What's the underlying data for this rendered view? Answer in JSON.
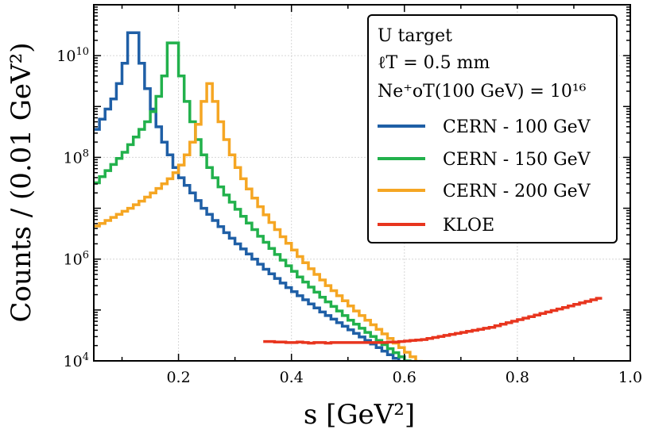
{
  "chart_data": {
    "type": "line",
    "title": "",
    "xlabel": "s [GeV²]",
    "ylabel": "Counts / (0.01 GeV²)",
    "xlim": [
      0.05,
      1.0
    ],
    "ylim_log10": [
      4,
      11
    ],
    "yscale": "log",
    "x_ticks": [
      0.2,
      0.4,
      0.6,
      0.8,
      1.0
    ],
    "x_tick_labels": [
      "0.2",
      "0.4",
      "0.6",
      "0.8",
      "1.0"
    ],
    "y_ticks_log10": [
      4,
      6,
      8,
      10
    ],
    "y_tick_labels": [
      {
        "base": "10",
        "exp": "4"
      },
      {
        "base": "10",
        "exp": "6"
      },
      {
        "base": "10",
        "exp": "8"
      },
      {
        "base": "10",
        "exp": "10"
      }
    ],
    "grid": true,
    "legend": {
      "placement": "top-right",
      "header": [
        "U target",
        "ℓT = 0.5 mm",
        "Ne⁺oT(100 GeV) = 10¹⁶"
      ],
      "entries": [
        "CERN - 100 GeV",
        "CERN - 150 GeV",
        "CERN - 200 GeV",
        "KLOE"
      ]
    },
    "series": [
      {
        "name": "CERN - 100 GeV",
        "color": "#1f5fa6",
        "style": "step",
        "bin_width": 0.01,
        "x_start": 0.05,
        "log10_counts": [
          8.55,
          8.75,
          8.95,
          9.15,
          9.45,
          9.85,
          10.45,
          10.45,
          9.85,
          9.35,
          8.95,
          8.6,
          8.3,
          8.05,
          7.8,
          7.6,
          7.45,
          7.3,
          7.15,
          7.0,
          6.88,
          6.76,
          6.64,
          6.52,
          6.41,
          6.3,
          6.2,
          6.1,
          6.0,
          5.9,
          5.8,
          5.71,
          5.62,
          5.53,
          5.44,
          5.36,
          5.28,
          5.2,
          5.12,
          5.04,
          4.96,
          4.89,
          4.82,
          4.75,
          4.68,
          4.61,
          4.54,
          4.47,
          4.4,
          4.33,
          4.26,
          4.19,
          4.12,
          4.05,
          3.98,
          3.9
        ]
      },
      {
        "name": "CERN - 150 GeV",
        "color": "#22b14c",
        "style": "step",
        "bin_width": 0.01,
        "x_start": 0.05,
        "log10_counts": [
          7.5,
          7.62,
          7.74,
          7.86,
          7.98,
          8.1,
          8.25,
          8.4,
          8.55,
          8.7,
          8.9,
          9.2,
          9.6,
          10.25,
          10.25,
          9.6,
          9.1,
          8.7,
          8.35,
          8.05,
          7.8,
          7.6,
          7.42,
          7.26,
          7.12,
          6.98,
          6.84,
          6.71,
          6.58,
          6.45,
          6.33,
          6.21,
          6.09,
          5.98,
          5.87,
          5.76,
          5.65,
          5.55,
          5.45,
          5.35,
          5.25,
          5.16,
          5.07,
          4.98,
          4.89,
          4.8,
          4.72,
          4.64,
          4.56,
          4.48,
          4.4,
          4.32,
          4.24,
          4.16,
          4.08,
          4.0,
          3.92,
          3.84,
          3.76,
          3.68
        ]
      },
      {
        "name": "CERN - 200 GeV",
        "color": "#f5a623",
        "style": "step",
        "bin_width": 0.01,
        "x_start": 0.05,
        "log10_counts": [
          6.65,
          6.7,
          6.76,
          6.82,
          6.88,
          6.94,
          7.0,
          7.07,
          7.14,
          7.22,
          7.3,
          7.39,
          7.48,
          7.58,
          7.7,
          7.85,
          8.05,
          8.3,
          8.65,
          9.1,
          9.45,
          9.1,
          8.7,
          8.35,
          8.05,
          7.8,
          7.58,
          7.38,
          7.2,
          7.03,
          6.87,
          6.72,
          6.58,
          6.44,
          6.31,
          6.18,
          6.05,
          5.93,
          5.81,
          5.7,
          5.59,
          5.48,
          5.38,
          5.28,
          5.18,
          5.08,
          4.98,
          4.89,
          4.8,
          4.71,
          4.62,
          4.53,
          4.44,
          4.35,
          4.26,
          4.17,
          4.08,
          3.99,
          3.9
        ]
      },
      {
        "name": "KLOE",
        "color": "#e8351e",
        "style": "step",
        "bin_width": 0.01,
        "x_start": 0.35,
        "log10_counts": [
          4.38,
          4.38,
          4.37,
          4.37,
          4.36,
          4.36,
          4.37,
          4.36,
          4.35,
          4.36,
          4.36,
          4.35,
          4.36,
          4.36,
          4.36,
          4.36,
          4.36,
          4.36,
          4.36,
          4.36,
          4.36,
          4.36,
          4.37,
          4.37,
          4.38,
          4.39,
          4.4,
          4.41,
          4.42,
          4.44,
          4.46,
          4.48,
          4.5,
          4.52,
          4.54,
          4.56,
          4.58,
          4.6,
          4.62,
          4.64,
          4.66,
          4.69,
          4.72,
          4.75,
          4.78,
          4.81,
          4.84,
          4.87,
          4.9,
          4.93,
          4.96,
          4.99,
          5.02,
          5.05,
          5.08,
          5.11,
          5.14,
          5.17,
          5.2,
          5.23
        ]
      }
    ]
  }
}
